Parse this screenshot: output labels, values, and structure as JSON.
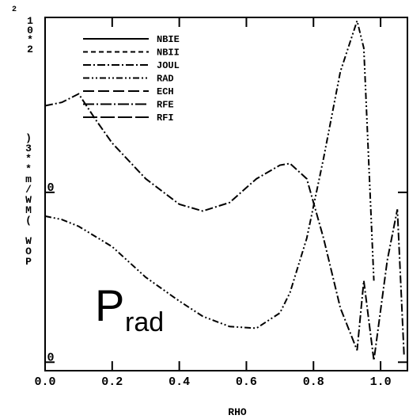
{
  "chart_data": {
    "type": "line",
    "xlabel": "RHO",
    "ylabel": "POW (MW/m**3)",
    "multiplier": "10*2",
    "exponent": "2",
    "annotation": {
      "text": "P",
      "subscript": "rad"
    },
    "x": [
      0,
      0.05,
      0.1,
      0.15,
      0.2,
      0.3,
      0.4,
      0.47,
      0.55,
      0.63,
      0.7,
      0.73,
      0.78,
      0.83,
      0.88,
      0.93,
      0.95,
      0.98,
      1.02,
      1.05,
      1.07
    ],
    "xlim": [
      0,
      1.08
    ],
    "xticks": [
      {
        "value": 0,
        "label": "0.0"
      },
      {
        "value": 0.2,
        "label": "0.2"
      },
      {
        "value": 0.4,
        "label": "0.4"
      },
      {
        "value": 0.6,
        "label": "0.6"
      },
      {
        "value": 0.8,
        "label": "0.8"
      },
      {
        "value": 1,
        "label": "1.0"
      }
    ],
    "ylim": [
      -0.05,
      2.03
    ],
    "yticks": [
      0,
      {
        "value": 1,
        "label": "0"
      }
    ],
    "color": "#000000",
    "series": [
      {
        "name": "NBIE",
        "dash": "none",
        "values": [
          null,
          null,
          null,
          null,
          null,
          null,
          null,
          null,
          null,
          null,
          null,
          null,
          null,
          null,
          null,
          null,
          null,
          null,
          null,
          null,
          null
        ]
      },
      {
        "name": "NBII",
        "dash": "6 4",
        "values": [
          null,
          null,
          null,
          null,
          null,
          null,
          null,
          null,
          null,
          null,
          null,
          null,
          null,
          null,
          null,
          null,
          null,
          null,
          null,
          null,
          null
        ]
      },
      {
        "name": "JOUL",
        "dash": "10 3 2 3",
        "values": [
          1.51,
          1.53,
          1.58,
          1.43,
          1.29,
          1.08,
          0.93,
          0.89,
          0.94,
          1.08,
          1.16,
          1.17,
          1.08,
          0.73,
          0.32,
          0.07,
          0.48,
          0.01,
          0.6,
          0.9,
          0.04
        ]
      },
      {
        "name": "RAD",
        "dash": "8 3 2 3 2 3",
        "values": [
          0.86,
          0.84,
          0.8,
          0.74,
          0.68,
          0.5,
          0.36,
          0.27,
          0.21,
          0.2,
          0.29,
          0.41,
          0.73,
          1.2,
          1.71,
          2.01,
          1.85,
          0.48,
          null,
          null,
          null
        ]
      },
      {
        "name": "ECH",
        "dash": "14 5",
        "values": [
          null,
          null,
          null,
          null,
          null,
          null,
          null,
          null,
          null,
          null,
          null,
          null,
          null,
          null,
          null,
          null,
          null,
          null,
          null,
          null,
          null
        ]
      },
      {
        "name": "RFE",
        "dash": "14 3 2 3",
        "values": [
          null,
          null,
          null,
          null,
          null,
          null,
          null,
          null,
          null,
          null,
          null,
          null,
          null,
          null,
          null,
          null,
          null,
          null,
          null,
          null,
          null
        ]
      },
      {
        "name": "RFI",
        "dash": "18 4",
        "values": [
          null,
          null,
          null,
          null,
          null,
          null,
          null,
          null,
          null,
          null,
          null,
          null,
          null,
          null,
          null,
          null,
          null,
          null,
          null,
          null,
          null
        ]
      }
    ]
  }
}
